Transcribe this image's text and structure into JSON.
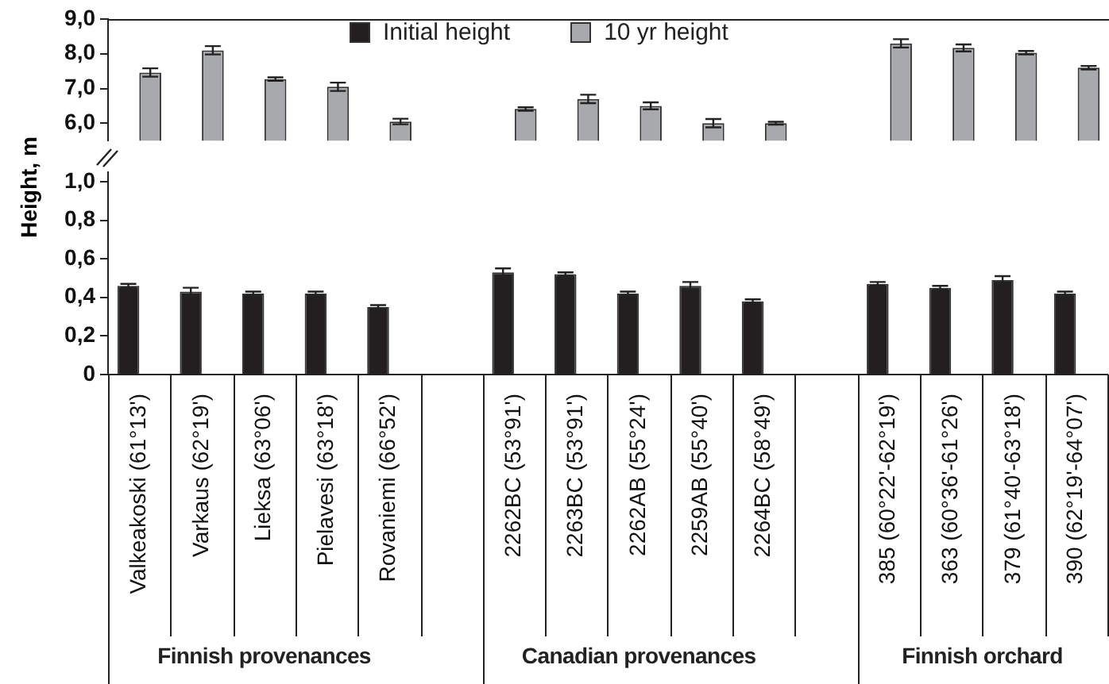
{
  "chart_data": [
    {
      "type": "bar",
      "categories": [
        null,
        null,
        null,
        null,
        null,
        null,
        null,
        null,
        null,
        null,
        null,
        null,
        null,
        null,
        null,
        null
      ],
      "series": [
        {
          "name": "10 yr height",
          "color": "#a7a9ac",
          "values": [
            7.46,
            8.1,
            7.27,
            7.05,
            6.05,
            null,
            6.41,
            6.7,
            6.5,
            6.0,
            6.0,
            null,
            8.3,
            8.17,
            8.03,
            7.6
          ],
          "errors": [
            0.12,
            0.12,
            0.05,
            0.12,
            0.08,
            null,
            0.05,
            0.12,
            0.1,
            0.12,
            0.04,
            null,
            0.12,
            0.1,
            0.05,
            0.05
          ]
        }
      ],
      "ylim": [
        5.5,
        9
      ],
      "yticks": [
        {
          "value": 6,
          "label": "6,0"
        },
        {
          "value": 7,
          "label": "7,0"
        },
        {
          "value": 8,
          "label": "8,0"
        },
        {
          "value": 9,
          "label": "9,0"
        }
      ],
      "tick_labels": "y",
      "legend": "top"
    },
    {
      "type": "bar",
      "ylabel": "Height, m",
      "categories": [
        "Valkeakoski (61°13')",
        "Varkaus (62°19')",
        "Lieksa (63°06')",
        "Pielavesi (63°18')",
        "Rovaniemi (66°52')",
        null,
        "2262BC (53°91')",
        "2263BC (53°91')",
        "2262AB (55°24')",
        "2259AB (55°40')",
        "2264BC (58°49')",
        null,
        "385 (60°22'-62°19')",
        "363 (60°36'-61°26')",
        "379 (61°40'-63°18')",
        "390 (62°19'-64°07')"
      ],
      "series": [
        {
          "name": "Initial height",
          "color": "#231f20",
          "values": [
            0.46,
            0.43,
            0.42,
            0.42,
            0.35,
            null,
            0.53,
            0.52,
            0.42,
            0.46,
            0.38,
            null,
            0.47,
            0.45,
            0.49,
            0.42
          ],
          "errors": [
            0.01,
            0.02,
            0.01,
            0.01,
            0.01,
            null,
            0.02,
            0.01,
            0.01,
            0.02,
            0.01,
            null,
            0.01,
            0.01,
            0.02,
            0.01
          ]
        }
      ],
      "ylim": [
        0,
        1.05
      ],
      "yticks": [
        0,
        {
          "value": 0.2,
          "label": "0,2"
        },
        {
          "value": 0.4,
          "label": "0,4"
        },
        {
          "value": 0.6,
          "label": "0,6"
        },
        {
          "value": 0.8,
          "label": "0,8"
        },
        {
          "value": 1,
          "label": "1,0"
        }
      ],
      "legend": "top",
      "annotations": [
        "Finnish provenances",
        "Canadian provenances",
        "Finnish orchard"
      ]
    }
  ]
}
